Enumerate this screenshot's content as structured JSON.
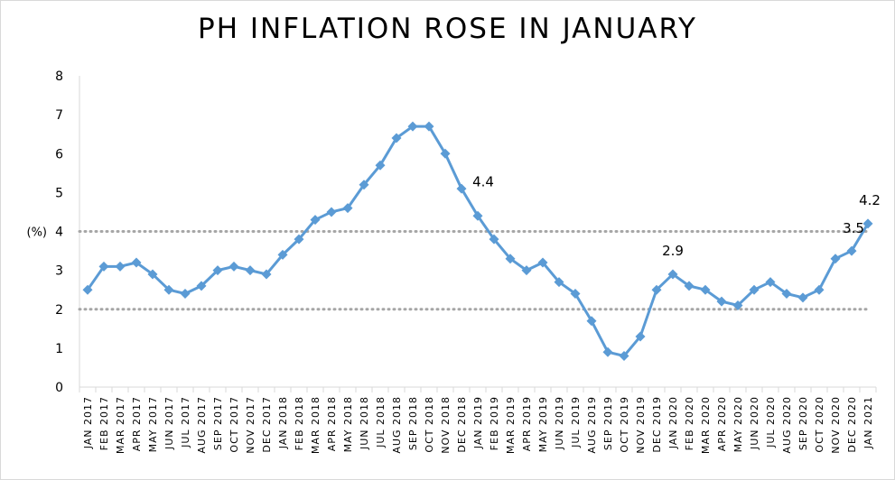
{
  "chart_data": {
    "type": "line",
    "title": "PH INFLATION ROSE IN JANUARY",
    "ylabel": "(%)",
    "xlabel": "",
    "ylim": [
      0,
      8
    ],
    "yticks": [
      "0",
      "1",
      "2",
      "3",
      "4",
      "5",
      "6",
      "7",
      "8"
    ],
    "reference_lines": [
      2,
      4
    ],
    "categories": [
      "JAN 2017",
      "FEB 2017",
      "MAR 2017",
      "APR 2017",
      "MAY 2017",
      "JUN 2017",
      "JUL 2017",
      "AUG 2017",
      "SEP 2017",
      "OCT 2017",
      "NOV 2017",
      "DEC 2017",
      "JAN 2018",
      "FEB 2018",
      "MAR 2018",
      "APR 2018",
      "MAY 2018",
      "JUN 2018",
      "JUL 2018",
      "AUG 2018",
      "SEP 2018",
      "OCT 2018",
      "NOV 2018",
      "DEC 2018",
      "JAN 2019",
      "FEB 2019",
      "MAR 2019",
      "APR 2019",
      "MAY 2019",
      "JUN 2019",
      "JUL 2019",
      "AUG 2019",
      "SEP 2019",
      "OCT 2019",
      "NOV 2019",
      "DEC 2019",
      "JAN 2020",
      "FEB 2020",
      "MAR 2020",
      "APR 2020",
      "MAY 2020",
      "JUN 2020",
      "JUL 2020",
      "AUG 2020",
      "SEP 2020",
      "OCT 2020",
      "NOV 2020",
      "DEC 2020",
      "JAN 2021"
    ],
    "series": [
      {
        "values": [
          2.5,
          3.1,
          3.1,
          3.2,
          2.9,
          2.5,
          2.4,
          2.6,
          3.0,
          3.1,
          3.0,
          2.9,
          3.4,
          3.8,
          4.3,
          4.5,
          4.6,
          5.2,
          5.7,
          6.4,
          6.7,
          6.7,
          6.0,
          5.1,
          4.4,
          3.8,
          3.3,
          3.0,
          3.2,
          2.7,
          2.4,
          1.7,
          0.9,
          0.8,
          1.3,
          2.5,
          2.9,
          2.6,
          2.5,
          2.2,
          2.1,
          2.5,
          2.7,
          2.4,
          2.3,
          2.5,
          3.3,
          3.5,
          4.2
        ]
      }
    ],
    "data_labels": [
      {
        "category": "JAN 2019",
        "text": "4.4"
      },
      {
        "category": "JAN 2020",
        "text": "2.9"
      },
      {
        "category": "DEC 2020",
        "text": "3.5"
      },
      {
        "category": "JAN 2021",
        "text": "4.2"
      }
    ],
    "colors": {
      "line": "#5b9bd5",
      "reference": "#a6a6a6",
      "axis": "#d9d9d9"
    },
    "grid": false,
    "legend": "none"
  }
}
